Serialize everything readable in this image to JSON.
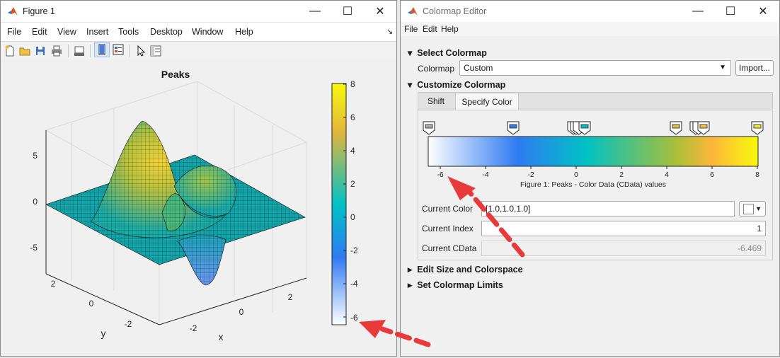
{
  "figure_window": {
    "title": "Figure 1",
    "menu": [
      "File",
      "Edit",
      "View",
      "Insert",
      "Tools",
      "Desktop",
      "Window",
      "Help"
    ],
    "chart_data": {
      "type": "surface",
      "title": "Peaks",
      "xlabel": "x",
      "ylabel": "y",
      "x_ticks": [
        "-2",
        "0",
        "2"
      ],
      "y_ticks": [
        "-2",
        "0",
        "2"
      ],
      "z_ticks": [
        "-5",
        "0",
        "5"
      ],
      "z_range": [
        -6.5,
        8.1
      ],
      "colorbar_ticks": [
        "8",
        "6",
        "4",
        "2",
        "0",
        "-2",
        "-4",
        "-6"
      ],
      "colorbar_range": [
        -6.469,
        8.1
      ]
    }
  },
  "colormap_editor": {
    "title": "Colormap Editor",
    "menu": [
      "File",
      "Edit",
      "Help"
    ],
    "select_section": "Select Colormap",
    "colormap_label": "Colormap",
    "colormap_value": "Custom",
    "import_button": "Import...",
    "customize_section": "Customize Colormap",
    "tabs": [
      "Shift",
      "Specify Color"
    ],
    "scale_ticks": [
      "-6",
      "-4",
      "-2",
      "0",
      "2",
      "4",
      "6",
      "8"
    ],
    "scale_caption": "Figure 1: Peaks - Color Data (CData) values",
    "current_color_label": "Current Color",
    "current_color_value": "[1.0,1.0,1.0]",
    "current_index_label": "Current Index",
    "current_index_value": "1",
    "current_cdata_label": "Current CData",
    "current_cdata_value": "-6.469",
    "size_section": "Edit Size and Colorspace",
    "limits_section": "Set Colormap Limits"
  },
  "colors": {
    "gradient": [
      "#ffffff",
      "#2f7bf2",
      "#00c2c4",
      "#e2b63b",
      "#f8fa0d"
    ],
    "arrow": "#e8393b"
  }
}
